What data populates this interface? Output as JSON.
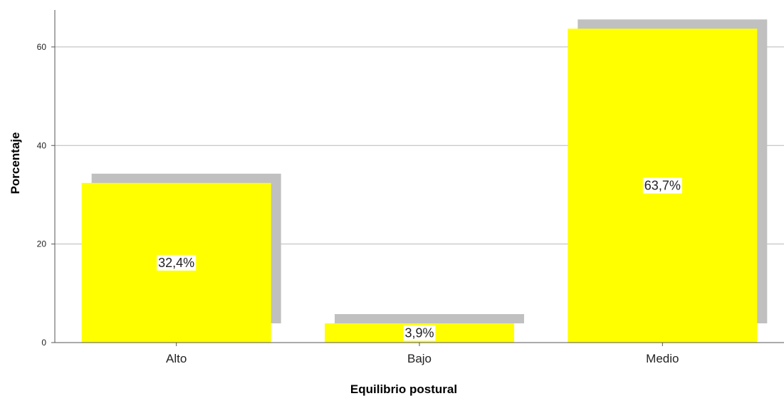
{
  "chart_data": {
    "type": "bar",
    "categories": [
      "Alto",
      "Bajo",
      "Medio"
    ],
    "values": [
      32.4,
      3.9,
      63.7
    ],
    "data_labels": [
      "32,4%",
      "3,9%",
      "63,7%"
    ],
    "xlabel": "Equilibrio postural",
    "ylabel": "Porcentaje",
    "ylim": [
      0,
      67.5
    ],
    "yticks": [
      0,
      20,
      40,
      60
    ],
    "grid": true,
    "bar_shadow": true,
    "colors": {
      "bar": "#ffff00",
      "shadow": "#c0c0c0",
      "grid": "#b8b8b8",
      "axis": "#555555",
      "label_bg": "#ffffff"
    }
  }
}
